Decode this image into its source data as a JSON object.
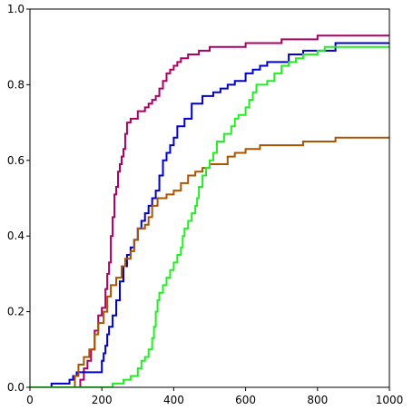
{
  "chart_data": {
    "type": "line",
    "step": true,
    "title": "",
    "xlabel": "",
    "ylabel": "",
    "xlim": [
      0,
      1000
    ],
    "ylim": [
      0,
      1.0
    ],
    "xticks": [
      0,
      200,
      400,
      600,
      800,
      1000
    ],
    "yticks": [
      0.0,
      0.2,
      0.4,
      0.6,
      0.8,
      1.0
    ],
    "xtick_labels": [
      "0",
      "200",
      "400",
      "600",
      "800",
      "1000"
    ],
    "ytick_labels": [
      "0.0",
      "0.2",
      "0.4",
      "0.6",
      "0.8",
      "1.0"
    ],
    "grid": false,
    "series": [
      {
        "color": "#aa0066",
        "points": [
          [
            0,
            0
          ],
          [
            130,
            0
          ],
          [
            140,
            0.02
          ],
          [
            150,
            0.05
          ],
          [
            160,
            0.07
          ],
          [
            170,
            0.1
          ],
          [
            180,
            0.15
          ],
          [
            190,
            0.19
          ],
          [
            200,
            0.21
          ],
          [
            210,
            0.26
          ],
          [
            215,
            0.3
          ],
          [
            220,
            0.33
          ],
          [
            225,
            0.4
          ],
          [
            230,
            0.45
          ],
          [
            235,
            0.51
          ],
          [
            240,
            0.53
          ],
          [
            245,
            0.57
          ],
          [
            250,
            0.59
          ],
          [
            255,
            0.61
          ],
          [
            260,
            0.63
          ],
          [
            265,
            0.67
          ],
          [
            270,
            0.7
          ],
          [
            280,
            0.71
          ],
          [
            290,
            0.71
          ],
          [
            300,
            0.73
          ],
          [
            310,
            0.73
          ],
          [
            320,
            0.74
          ],
          [
            330,
            0.75
          ],
          [
            340,
            0.76
          ],
          [
            350,
            0.77
          ],
          [
            360,
            0.79
          ],
          [
            370,
            0.81
          ],
          [
            380,
            0.83
          ],
          [
            390,
            0.84
          ],
          [
            400,
            0.85
          ],
          [
            410,
            0.86
          ],
          [
            420,
            0.87
          ],
          [
            440,
            0.88
          ],
          [
            470,
            0.89
          ],
          [
            500,
            0.9
          ],
          [
            600,
            0.91
          ],
          [
            700,
            0.92
          ],
          [
            750,
            0.92
          ],
          [
            800,
            0.93
          ],
          [
            1000,
            0.93
          ]
        ]
      },
      {
        "color": "#0000cc",
        "points": [
          [
            0,
            0
          ],
          [
            60,
            0.01
          ],
          [
            110,
            0.02
          ],
          [
            120,
            0.03
          ],
          [
            130,
            0.04
          ],
          [
            200,
            0.07
          ],
          [
            205,
            0.09
          ],
          [
            210,
            0.11
          ],
          [
            215,
            0.14
          ],
          [
            220,
            0.16
          ],
          [
            230,
            0.19
          ],
          [
            240,
            0.23
          ],
          [
            250,
            0.28
          ],
          [
            260,
            0.32
          ],
          [
            270,
            0.35
          ],
          [
            280,
            0.37
          ],
          [
            290,
            0.39
          ],
          [
            300,
            0.42
          ],
          [
            310,
            0.44
          ],
          [
            320,
            0.46
          ],
          [
            330,
            0.48
          ],
          [
            340,
            0.5
          ],
          [
            350,
            0.52
          ],
          [
            360,
            0.56
          ],
          [
            370,
            0.6
          ],
          [
            380,
            0.62
          ],
          [
            390,
            0.64
          ],
          [
            400,
            0.66
          ],
          [
            410,
            0.69
          ],
          [
            430,
            0.71
          ],
          [
            450,
            0.75
          ],
          [
            470,
            0.75
          ],
          [
            480,
            0.77
          ],
          [
            510,
            0.78
          ],
          [
            530,
            0.79
          ],
          [
            550,
            0.8
          ],
          [
            570,
            0.81
          ],
          [
            600,
            0.83
          ],
          [
            620,
            0.84
          ],
          [
            640,
            0.85
          ],
          [
            660,
            0.86
          ],
          [
            700,
            0.86
          ],
          [
            720,
            0.88
          ],
          [
            760,
            0.89
          ],
          [
            800,
            0.89
          ],
          [
            850,
            0.91
          ],
          [
            1000,
            0.91
          ]
        ]
      },
      {
        "color": "#aa5500",
        "points": [
          [
            0,
            0
          ],
          [
            115,
            0
          ],
          [
            125,
            0.03
          ],
          [
            135,
            0.06
          ],
          [
            150,
            0.08
          ],
          [
            165,
            0.1
          ],
          [
            180,
            0.14
          ],
          [
            190,
            0.17
          ],
          [
            205,
            0.2
          ],
          [
            215,
            0.24
          ],
          [
            225,
            0.27
          ],
          [
            240,
            0.29
          ],
          [
            255,
            0.32
          ],
          [
            265,
            0.34
          ],
          [
            280,
            0.36
          ],
          [
            290,
            0.39
          ],
          [
            300,
            0.42
          ],
          [
            320,
            0.43
          ],
          [
            330,
            0.45
          ],
          [
            340,
            0.48
          ],
          [
            355,
            0.5
          ],
          [
            380,
            0.51
          ],
          [
            400,
            0.52
          ],
          [
            420,
            0.54
          ],
          [
            440,
            0.56
          ],
          [
            460,
            0.57
          ],
          [
            480,
            0.58
          ],
          [
            500,
            0.59
          ],
          [
            550,
            0.61
          ],
          [
            570,
            0.62
          ],
          [
            600,
            0.63
          ],
          [
            640,
            0.64
          ],
          [
            700,
            0.64
          ],
          [
            760,
            0.65
          ],
          [
            800,
            0.65
          ],
          [
            850,
            0.66
          ],
          [
            1000,
            0.66
          ]
        ]
      },
      {
        "color": "#22ee22",
        "points": [
          [
            0,
            0
          ],
          [
            200,
            0
          ],
          [
            230,
            0.01
          ],
          [
            260,
            0.02
          ],
          [
            280,
            0.03
          ],
          [
            300,
            0.05
          ],
          [
            310,
            0.07
          ],
          [
            320,
            0.08
          ],
          [
            330,
            0.1
          ],
          [
            340,
            0.13
          ],
          [
            345,
            0.16
          ],
          [
            350,
            0.2
          ],
          [
            355,
            0.23
          ],
          [
            360,
            0.25
          ],
          [
            370,
            0.27
          ],
          [
            380,
            0.29
          ],
          [
            390,
            0.31
          ],
          [
            400,
            0.33
          ],
          [
            410,
            0.35
          ],
          [
            420,
            0.37
          ],
          [
            425,
            0.4
          ],
          [
            430,
            0.42
          ],
          [
            440,
            0.44
          ],
          [
            450,
            0.46
          ],
          [
            460,
            0.48
          ],
          [
            465,
            0.5
          ],
          [
            470,
            0.53
          ],
          [
            480,
            0.56
          ],
          [
            490,
            0.58
          ],
          [
            500,
            0.6
          ],
          [
            510,
            0.62
          ],
          [
            520,
            0.65
          ],
          [
            540,
            0.67
          ],
          [
            560,
            0.69
          ],
          [
            570,
            0.71
          ],
          [
            580,
            0.72
          ],
          [
            600,
            0.74
          ],
          [
            610,
            0.76
          ],
          [
            620,
            0.78
          ],
          [
            630,
            0.8
          ],
          [
            660,
            0.81
          ],
          [
            680,
            0.83
          ],
          [
            700,
            0.85
          ],
          [
            720,
            0.86
          ],
          [
            740,
            0.87
          ],
          [
            760,
            0.88
          ],
          [
            800,
            0.89
          ],
          [
            820,
            0.9
          ],
          [
            1000,
            0.9
          ]
        ]
      }
    ]
  }
}
